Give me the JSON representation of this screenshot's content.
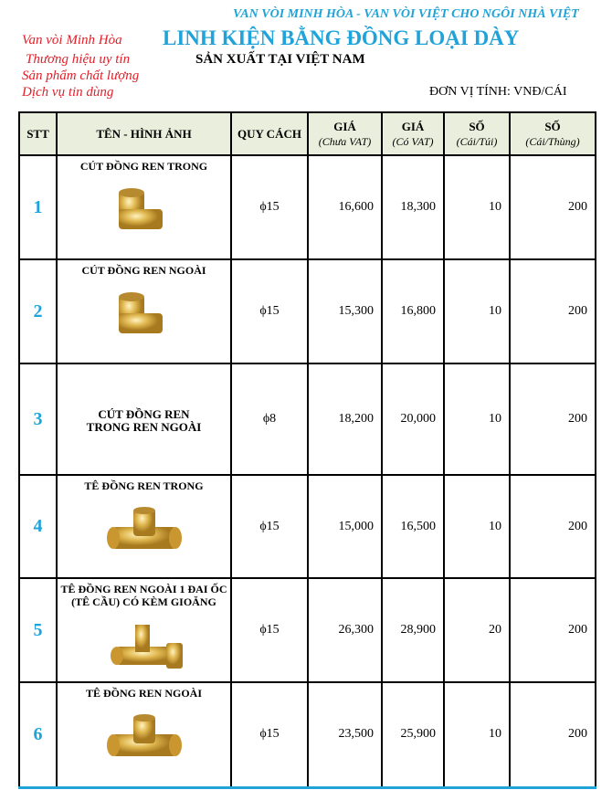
{
  "header": {
    "tagline": "VAN VÒI MINH HÒA - VAN VÒI VIỆT CHO NGÔI NHÀ VIỆT",
    "slogans": [
      "Van vòi Minh Hòa",
      "Thương hiệu uy tín",
      "Sản phẩm chất lượng",
      "Dịch vụ tin dùng"
    ],
    "title": "LINH KIỆN BẰNG ĐỒNG LOẠI DÀY",
    "subtitle": "SẢN XUẤT TẠI VIỆT NAM",
    "unit": "ĐƠN VỊ TÍNH: VNĐ/CÁI"
  },
  "columns": [
    {
      "label": "STT"
    },
    {
      "label": "TÊN - HÌNH ẢNH"
    },
    {
      "label": "QUY CÁCH"
    },
    {
      "label": "GIÁ",
      "sub": "(Chưa VAT)"
    },
    {
      "label": "GIÁ",
      "sub": "(Có VAT)"
    },
    {
      "label": "SỐ",
      "sub": "(Cái/Túi)"
    },
    {
      "label": "SỐ",
      "sub": "(Cái/Thùng)"
    }
  ],
  "rows": [
    {
      "stt": "1",
      "name": "CÚT ĐỒNG REN TRONG",
      "image": "brass-elbow-female",
      "spec": "ϕ15",
      "price": "16,600",
      "price_vat": "18,300",
      "per_bag": "10",
      "per_box": "200"
    },
    {
      "stt": "2",
      "name": "CÚT ĐỒNG  REN NGOÀI",
      "image": "brass-elbow-male",
      "spec": "ϕ15",
      "price": "15,300",
      "price_vat": "16,800",
      "per_bag": "10",
      "per_box": "200"
    },
    {
      "stt": "3",
      "name": "CÚT ĐỒNG REN TRONG REN NGOÀI",
      "image": "",
      "spec": "ϕ8",
      "price": "18,200",
      "price_vat": "20,000",
      "per_bag": "10",
      "per_box": "200"
    },
    {
      "stt": "4",
      "name": "TÊ ĐỒNG REN TRONG",
      "image": "brass-tee-female",
      "spec": "ϕ15",
      "price": "15,000",
      "price_vat": "16,500",
      "per_bag": "10",
      "per_box": "200"
    },
    {
      "stt": "5",
      "name": "TÊ ĐỒNG REN NGOÀI 1 ĐAI ỐC (TÊ CẦU) CÓ KÈM GIOĂNG",
      "image": "brass-tee-nut",
      "spec": "ϕ15",
      "price": "26,300",
      "price_vat": "28,900",
      "per_bag": "20",
      "per_box": "200"
    },
    {
      "stt": "6",
      "name": "TÊ ĐỒNG REN NGOÀI",
      "image": "brass-tee-male",
      "spec": "ϕ15",
      "price": "23,500",
      "price_vat": "25,900",
      "per_bag": "10",
      "per_box": "200"
    }
  ],
  "colors": {
    "accent": "#1fa3d8",
    "slogan": "#e0202a",
    "header_bg": "#e9efdc",
    "brass": "#d8b04a"
  }
}
